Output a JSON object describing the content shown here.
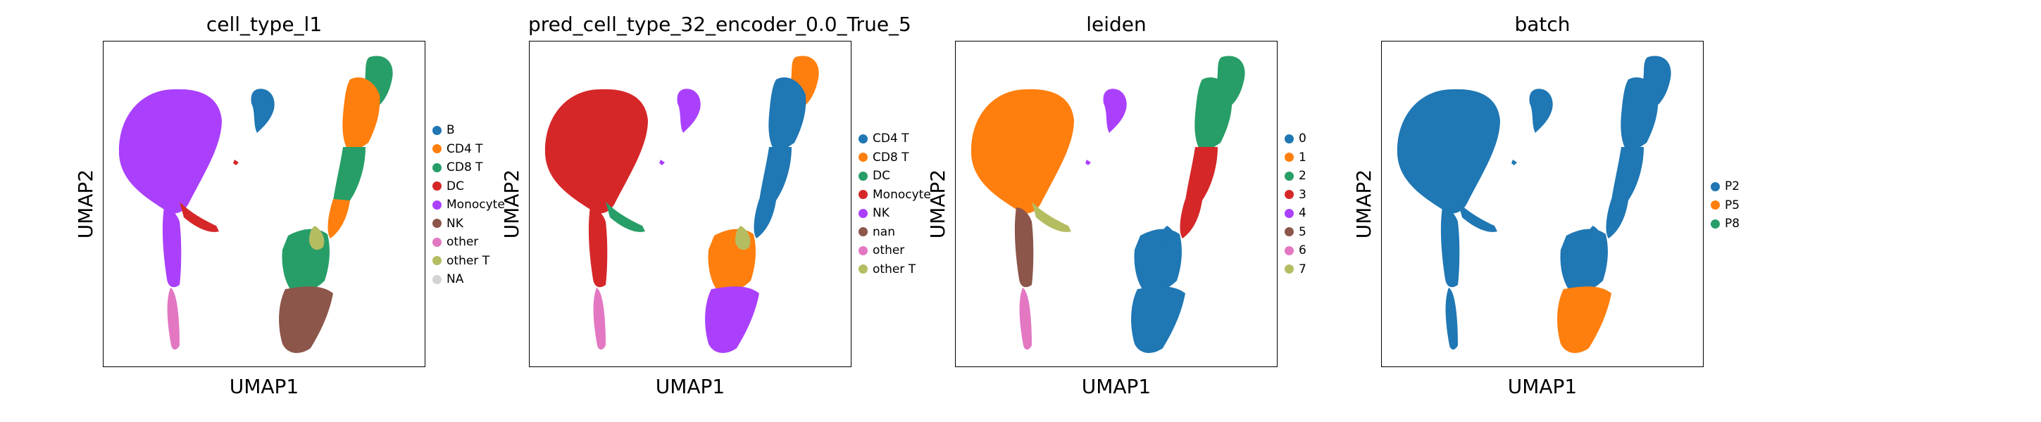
{
  "chart_data": [
    {
      "type": "scatter",
      "title": "cell_type_l1",
      "xlabel": "UMAP1",
      "ylabel": "UMAP2",
      "legend_position": "right",
      "legend": [
        {
          "label": "B",
          "color": "#1f77b4"
        },
        {
          "label": "CD4 T",
          "color": "#ff7f0e"
        },
        {
          "label": "CD8 T",
          "color": "#279e68"
        },
        {
          "label": "DC",
          "color": "#d62728"
        },
        {
          "label": "Monocyte",
          "color": "#aa40fc"
        },
        {
          "label": "NK",
          "color": "#8c564b"
        },
        {
          "label": "other",
          "color": "#e377c2"
        },
        {
          "label": "other T",
          "color": "#b5bd61"
        },
        {
          "label": "NA",
          "color": "#d3d3d3"
        }
      ],
      "regions": [
        {
          "cluster": "left-blob",
          "category": "Monocyte"
        },
        {
          "cluster": "left-tail",
          "category": "Monocyte"
        },
        {
          "cluster": "left-bottom-tail",
          "category": "other"
        },
        {
          "cluster": "left-arm",
          "category": "DC"
        },
        {
          "cluster": "small-top",
          "category": "B"
        },
        {
          "cluster": "tiny",
          "category": "DC"
        },
        {
          "cluster": "right-top",
          "category": "CD8 T"
        },
        {
          "cluster": "right-upper",
          "category": "CD4 T"
        },
        {
          "cluster": "right-mid",
          "category": "CD8 T"
        },
        {
          "cluster": "right-mid2",
          "category": "CD4 T"
        },
        {
          "cluster": "right-lower",
          "category": "CD8 T"
        },
        {
          "cluster": "right-olive",
          "category": "other T"
        },
        {
          "cluster": "right-bottom",
          "category": "NK"
        }
      ]
    },
    {
      "type": "scatter",
      "title": "pred_cell_type_32_encoder_0.0_True_5",
      "xlabel": "UMAP1",
      "ylabel": "UMAP2",
      "legend_position": "right",
      "legend": [
        {
          "label": "CD4 T",
          "color": "#1f77b4"
        },
        {
          "label": "CD8 T",
          "color": "#ff7f0e"
        },
        {
          "label": "DC",
          "color": "#279e68"
        },
        {
          "label": "Monocyte",
          "color": "#d62728"
        },
        {
          "label": "NK",
          "color": "#aa40fc"
        },
        {
          "label": "nan",
          "color": "#8c564b"
        },
        {
          "label": "other",
          "color": "#e377c2"
        },
        {
          "label": "other T",
          "color": "#b5bd61"
        }
      ],
      "regions": [
        {
          "cluster": "left-blob",
          "category": "Monocyte"
        },
        {
          "cluster": "left-tail",
          "category": "Monocyte"
        },
        {
          "cluster": "left-bottom-tail",
          "category": "other"
        },
        {
          "cluster": "left-arm",
          "category": "DC"
        },
        {
          "cluster": "small-top",
          "category": "NK"
        },
        {
          "cluster": "tiny",
          "category": "NK"
        },
        {
          "cluster": "right-top",
          "category": "CD8 T"
        },
        {
          "cluster": "right-upper",
          "category": "CD4 T"
        },
        {
          "cluster": "right-mid",
          "category": "CD4 T"
        },
        {
          "cluster": "right-mid2",
          "category": "CD4 T"
        },
        {
          "cluster": "right-lower",
          "category": "CD8 T"
        },
        {
          "cluster": "right-olive",
          "category": "other T"
        },
        {
          "cluster": "right-bottom",
          "category": "NK"
        }
      ]
    },
    {
      "type": "scatter",
      "title": "leiden",
      "xlabel": "UMAP1",
      "ylabel": "UMAP2",
      "legend_position": "right",
      "legend": [
        {
          "label": "0",
          "color": "#1f77b4"
        },
        {
          "label": "1",
          "color": "#ff7f0e"
        },
        {
          "label": "2",
          "color": "#279e68"
        },
        {
          "label": "3",
          "color": "#d62728"
        },
        {
          "label": "4",
          "color": "#aa40fc"
        },
        {
          "label": "5",
          "color": "#8c564b"
        },
        {
          "label": "6",
          "color": "#e377c2"
        },
        {
          "label": "7",
          "color": "#b5bd61"
        }
      ],
      "regions": [
        {
          "cluster": "left-blob",
          "category": "1"
        },
        {
          "cluster": "left-tail",
          "category": "5"
        },
        {
          "cluster": "left-bottom-tail",
          "category": "6"
        },
        {
          "cluster": "left-arm",
          "category": "7"
        },
        {
          "cluster": "small-top",
          "category": "4"
        },
        {
          "cluster": "tiny",
          "category": "4"
        },
        {
          "cluster": "right-top",
          "category": "2"
        },
        {
          "cluster": "right-upper",
          "category": "2"
        },
        {
          "cluster": "right-mid",
          "category": "3"
        },
        {
          "cluster": "right-mid2",
          "category": "3"
        },
        {
          "cluster": "right-lower",
          "category": "0"
        },
        {
          "cluster": "right-olive",
          "category": "0"
        },
        {
          "cluster": "right-bottom",
          "category": "0"
        }
      ]
    },
    {
      "type": "scatter",
      "title": "batch",
      "xlabel": "UMAP1",
      "ylabel": "UMAP2",
      "legend_position": "right",
      "legend": [
        {
          "label": "P2",
          "color": "#1f77b4"
        },
        {
          "label": "P5",
          "color": "#ff7f0e"
        },
        {
          "label": "P8",
          "color": "#279e68"
        }
      ],
      "regions": [
        {
          "cluster": "left-blob",
          "category": "P2"
        },
        {
          "cluster": "left-tail",
          "category": "P2"
        },
        {
          "cluster": "left-bottom-tail",
          "category": "P2"
        },
        {
          "cluster": "left-arm",
          "category": "P2"
        },
        {
          "cluster": "small-top",
          "category": "P2"
        },
        {
          "cluster": "tiny",
          "category": "P2"
        },
        {
          "cluster": "right-top",
          "category": "P2"
        },
        {
          "cluster": "right-upper",
          "category": "P2"
        },
        {
          "cluster": "right-mid",
          "category": "P2"
        },
        {
          "cluster": "right-mid2",
          "category": "P2"
        },
        {
          "cluster": "right-lower",
          "category": "P2"
        },
        {
          "cluster": "right-olive",
          "category": "P2"
        },
        {
          "cluster": "right-bottom",
          "category": "P5"
        }
      ]
    }
  ]
}
